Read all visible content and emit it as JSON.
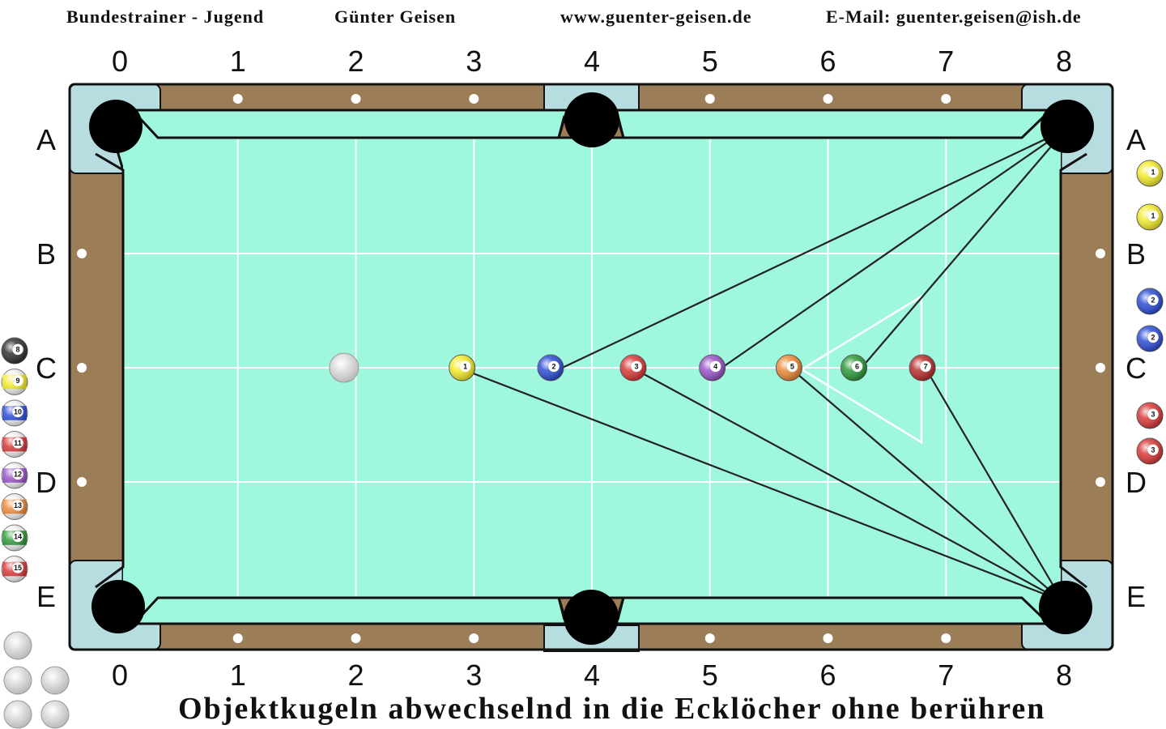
{
  "header": {
    "left": "Bundestrainer - Jugend",
    "center": "Günter Geisen",
    "website": "www.guenter-geisen.de",
    "email": "E-Mail: guenter.geisen@ish.de"
  },
  "columns": [
    "0",
    "1",
    "2",
    "3",
    "4",
    "5",
    "6",
    "7",
    "8"
  ],
  "rows": [
    "A",
    "B",
    "C",
    "D",
    "E"
  ],
  "colors": {
    "cloth": "#9ff8dd",
    "rail": "#9b7d57",
    "pocket_plate": "#b8dde0",
    "outline": "#111111",
    "grid": "#ffffff"
  },
  "footer": {
    "caption": "Objektkugeln abwechselnd in die Ecklöcher ohne berühren"
  },
  "table_balls": [
    {
      "label": "",
      "color": "#e8e8e8",
      "kind": "cue",
      "grid_x": 1.9,
      "grid_y": 2
    },
    {
      "label": "1",
      "color": "#f3ea2e",
      "kind": "solid",
      "grid_x": 2.9,
      "grid_y": 2
    },
    {
      "label": "2",
      "color": "#2f4fd6",
      "kind": "solid",
      "grid_x": 3.65,
      "grid_y": 2
    },
    {
      "label": "3",
      "color": "#d93a3a",
      "kind": "solid",
      "grid_x": 4.35,
      "grid_y": 2
    },
    {
      "label": "4",
      "color": "#9a55c8",
      "kind": "solid",
      "grid_x": 5.02,
      "grid_y": 2
    },
    {
      "label": "5",
      "color": "#ec8a3a",
      "kind": "solid",
      "grid_x": 5.67,
      "grid_y": 2
    },
    {
      "label": "6",
      "color": "#2e9a3a",
      "kind": "solid",
      "grid_x": 6.22,
      "grid_y": 2
    },
    {
      "label": "7",
      "color": "#b83030",
      "kind": "solid",
      "grid_x": 6.8,
      "grid_y": 2
    }
  ],
  "side_balls_left": [
    {
      "label": "8",
      "color": "#333333",
      "kind": "solid"
    },
    {
      "label": "9",
      "color": "#f3ea2e",
      "kind": "stripe"
    },
    {
      "label": "10",
      "color": "#2f4fd6",
      "kind": "stripe"
    },
    {
      "label": "11",
      "color": "#d93a3a",
      "kind": "stripe"
    },
    {
      "label": "12",
      "color": "#9a55c8",
      "kind": "stripe"
    },
    {
      "label": "13",
      "color": "#ec8a3a",
      "kind": "stripe"
    },
    {
      "label": "14",
      "color": "#2e9a3a",
      "kind": "stripe"
    },
    {
      "label": "15",
      "color": "#d93a3a",
      "kind": "stripe"
    }
  ],
  "side_balls_right": [
    {
      "label": "1",
      "color": "#f3ea2e",
      "kind": "solid"
    },
    {
      "label": "1",
      "color": "#f3ea2e",
      "kind": "solid"
    },
    {
      "label": "2",
      "color": "#2f4fd6",
      "kind": "solid"
    },
    {
      "label": "2",
      "color": "#2f4fd6",
      "kind": "solid"
    },
    {
      "label": "3",
      "color": "#d93a3a",
      "kind": "solid"
    },
    {
      "label": "3",
      "color": "#d93a3a",
      "kind": "solid"
    }
  ],
  "spare_cue_balls": 5,
  "shot_lines": [
    {
      "ball": "2",
      "pocket": "A8"
    },
    {
      "ball": "4",
      "pocket": "A8"
    },
    {
      "ball": "6",
      "pocket": "A8"
    },
    {
      "ball": "1",
      "pocket": "E8"
    },
    {
      "ball": "3",
      "pocket": "E8"
    },
    {
      "ball": "5",
      "pocket": "E8"
    },
    {
      "ball": "7",
      "pocket": "E8"
    }
  ]
}
